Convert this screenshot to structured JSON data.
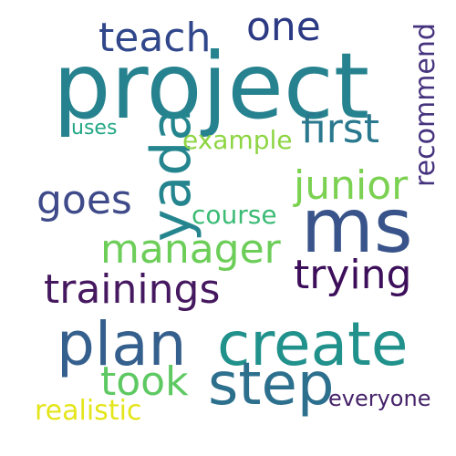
{
  "words": [
    {
      "key": "project",
      "text": "project",
      "color": "#26828e"
    },
    {
      "key": "teach",
      "text": "teach",
      "color": "#31478b"
    },
    {
      "key": "one",
      "text": "one",
      "color": "#2c3a84"
    },
    {
      "key": "recommend",
      "text": "recommend",
      "color": "#46337e"
    },
    {
      "key": "first",
      "text": "first",
      "color": "#2a788e"
    },
    {
      "key": "yada",
      "text": "yada",
      "color": "#25858e"
    },
    {
      "key": "uses",
      "text": "uses",
      "color": "#22a785"
    },
    {
      "key": "example",
      "text": "example",
      "color": "#8ed544"
    },
    {
      "key": "junior",
      "text": "junior",
      "color": "#7bd151"
    },
    {
      "key": "goes",
      "text": "goes",
      "color": "#3e4a89"
    },
    {
      "key": "course",
      "text": "course",
      "color": "#3bbb75"
    },
    {
      "key": "ms",
      "text": "ms",
      "color": "#39548b"
    },
    {
      "key": "manager",
      "text": "manager",
      "color": "#6cce59"
    },
    {
      "key": "trying",
      "text": "trying",
      "color": "#3d0f5b"
    },
    {
      "key": "trainings",
      "text": "trainings",
      "color": "#45185f"
    },
    {
      "key": "plan",
      "text": "plan",
      "color": "#35608d"
    },
    {
      "key": "create",
      "text": "create",
      "color": "#21918c"
    },
    {
      "key": "step",
      "text": "step",
      "color": "#2d708e"
    },
    {
      "key": "took",
      "text": "took",
      "color": "#5ec962"
    },
    {
      "key": "realistic",
      "text": "realistic",
      "color": "#e4e51a"
    },
    {
      "key": "everyone",
      "text": "everyone",
      "color": "#46236a"
    }
  ]
}
